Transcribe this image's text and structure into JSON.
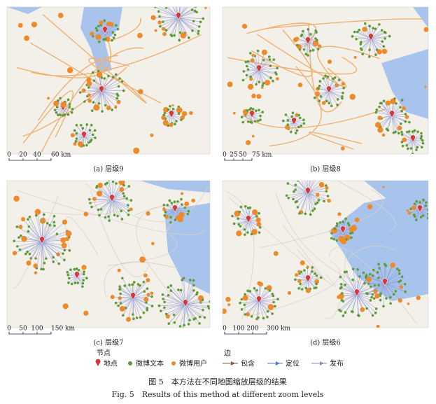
{
  "panels": [
    {
      "caption": "(a) 层级9",
      "scale_labels": [
        "0",
        "20",
        "40",
        "60 km"
      ]
    },
    {
      "caption": "(b) 层级8",
      "scale_labels": [
        "0",
        "25",
        "50",
        "75 km"
      ]
    },
    {
      "caption": "(c) 层级7",
      "scale_labels": [
        "0",
        "50",
        "100",
        "150 km"
      ]
    },
    {
      "caption": "(d) 层级6",
      "scale_labels": [
        "0",
        "100",
        "200",
        "300 km"
      ]
    }
  ],
  "legend": {
    "nodes_title": "节点",
    "nodes": [
      "地点",
      "微博文本",
      "微博用户"
    ],
    "edges_title": "边",
    "edges": [
      "包含",
      "定位",
      "发布"
    ]
  },
  "caption": {
    "zh": "图 5　本方法在不同地图缩放层级的结果",
    "en": "Fig. 5　Results of this method at different zoom levels"
  }
}
